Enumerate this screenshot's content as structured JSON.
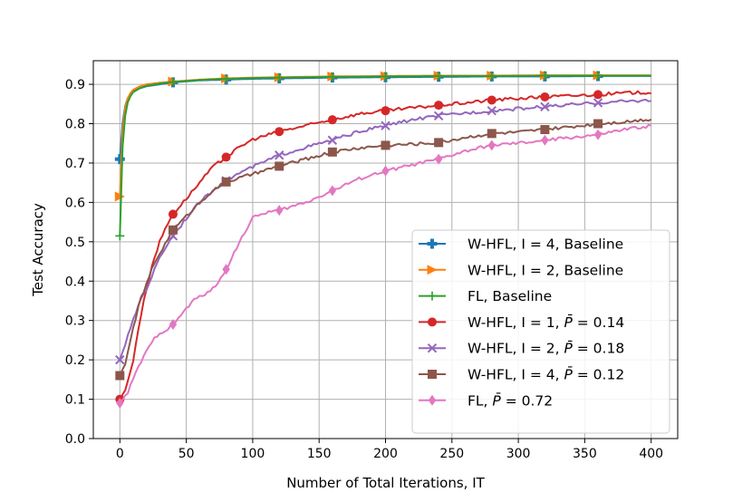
{
  "chart_data": {
    "type": "line",
    "xlabel": "Number of Total Iterations, IT",
    "ylabel": "Test Accuracy",
    "xlim": [
      -20,
      420
    ],
    "ylim": [
      0.0,
      0.96
    ],
    "xticks": [
      0,
      50,
      100,
      150,
      200,
      250,
      300,
      350,
      400
    ],
    "xtick_labels": [
      "0",
      "50",
      "100",
      "150",
      "200",
      "250",
      "300",
      "350",
      "400"
    ],
    "yticks": [
      0.0,
      0.1,
      0.2,
      0.3,
      0.4,
      0.5,
      0.6,
      0.7,
      0.8,
      0.9
    ],
    "ytick_labels": [
      "0.0",
      "0.1",
      "0.2",
      "0.3",
      "0.4",
      "0.5",
      "0.6",
      "0.7",
      "0.8",
      "0.9"
    ],
    "grid": true,
    "legend_position": "bottom-right",
    "series": [
      {
        "name": "W-HFL, I = 4, Baseline",
        "color": "#1f77b4",
        "marker": "plus-filled",
        "x": [
          0,
          2,
          4,
          6,
          8,
          10,
          15,
          20,
          30,
          40,
          60,
          80,
          100,
          120,
          160,
          200,
          240,
          280,
          320,
          360,
          400
        ],
        "y": [
          0.71,
          0.8,
          0.845,
          0.865,
          0.875,
          0.882,
          0.89,
          0.895,
          0.9,
          0.905,
          0.91,
          0.912,
          0.914,
          0.915,
          0.917,
          0.918,
          0.919,
          0.92,
          0.92,
          0.921,
          0.921
        ]
      },
      {
        "name": "W-HFL, I = 2, Baseline",
        "color": "#ff7f0e",
        "marker": "triangle-right",
        "x": [
          0,
          2,
          4,
          6,
          8,
          10,
          15,
          20,
          30,
          40,
          60,
          80,
          100,
          120,
          160,
          200,
          240,
          280,
          320,
          360,
          400
        ],
        "y": [
          0.615,
          0.78,
          0.84,
          0.865,
          0.878,
          0.886,
          0.895,
          0.9,
          0.904,
          0.907,
          0.912,
          0.915,
          0.917,
          0.918,
          0.92,
          0.921,
          0.922,
          0.922,
          0.923,
          0.923,
          0.923
        ]
      },
      {
        "name": "FL, Baseline",
        "color": "#2ca02c",
        "marker": "plus",
        "x": [
          0,
          2,
          4,
          6,
          8,
          10,
          15,
          20,
          30,
          40,
          60,
          80,
          100,
          120,
          160,
          200,
          240,
          280,
          320,
          360,
          400
        ],
        "y": [
          0.515,
          0.74,
          0.82,
          0.855,
          0.87,
          0.88,
          0.89,
          0.896,
          0.902,
          0.906,
          0.911,
          0.914,
          0.916,
          0.917,
          0.919,
          0.92,
          0.921,
          0.921,
          0.922,
          0.922,
          0.922
        ]
      },
      {
        "name": "W-HFL, I = 1, P̄ = 0.14",
        "color": "#d62728",
        "marker": "circle",
        "x": [
          0,
          5,
          10,
          15,
          20,
          25,
          30,
          35,
          40,
          50,
          60,
          70,
          80,
          90,
          100,
          110,
          120,
          140,
          160,
          180,
          200,
          220,
          240,
          260,
          280,
          300,
          320,
          340,
          360,
          380,
          400
        ],
        "y": [
          0.1,
          0.13,
          0.2,
          0.3,
          0.38,
          0.45,
          0.5,
          0.54,
          0.57,
          0.61,
          0.65,
          0.69,
          0.715,
          0.74,
          0.76,
          0.77,
          0.78,
          0.795,
          0.81,
          0.825,
          0.833,
          0.84,
          0.847,
          0.853,
          0.86,
          0.864,
          0.868,
          0.871,
          0.874,
          0.878,
          0.88
        ]
      },
      {
        "name": "W-HFL, I = 2, P̄ = 0.18",
        "color": "#9467bd",
        "marker": "x",
        "x": [
          0,
          5,
          10,
          15,
          20,
          25,
          30,
          35,
          40,
          50,
          60,
          70,
          80,
          90,
          100,
          110,
          120,
          140,
          160,
          180,
          200,
          220,
          240,
          260,
          280,
          300,
          320,
          340,
          360,
          380,
          400
        ],
        "y": [
          0.2,
          0.25,
          0.3,
          0.35,
          0.38,
          0.42,
          0.46,
          0.49,
          0.515,
          0.56,
          0.6,
          0.63,
          0.655,
          0.675,
          0.69,
          0.705,
          0.72,
          0.74,
          0.758,
          0.78,
          0.795,
          0.81,
          0.82,
          0.827,
          0.833,
          0.838,
          0.843,
          0.848,
          0.853,
          0.857,
          0.86
        ]
      },
      {
        "name": "W-HFL, I = 4, P̄ = 0.12",
        "color": "#8c564b",
        "marker": "square",
        "x": [
          0,
          5,
          10,
          15,
          20,
          25,
          30,
          35,
          40,
          50,
          60,
          70,
          80,
          90,
          100,
          110,
          120,
          140,
          160,
          180,
          200,
          220,
          240,
          260,
          280,
          300,
          320,
          340,
          360,
          380,
          400
        ],
        "y": [
          0.16,
          0.2,
          0.28,
          0.35,
          0.39,
          0.44,
          0.47,
          0.5,
          0.53,
          0.565,
          0.6,
          0.63,
          0.652,
          0.662,
          0.672,
          0.682,
          0.692,
          0.71,
          0.728,
          0.738,
          0.745,
          0.748,
          0.752,
          0.765,
          0.775,
          0.778,
          0.785,
          0.792,
          0.8,
          0.805,
          0.812
        ]
      },
      {
        "name": "FL, P̄ = 0.72",
        "color": "#e377c2",
        "marker": "diamond",
        "x": [
          0,
          5,
          10,
          15,
          20,
          25,
          30,
          35,
          40,
          45,
          50,
          55,
          60,
          65,
          70,
          75,
          80,
          90,
          100,
          110,
          120,
          130,
          140,
          150,
          160,
          180,
          200,
          220,
          240,
          260,
          280,
          300,
          320,
          340,
          360,
          380,
          400
        ],
        "y": [
          0.09,
          0.11,
          0.15,
          0.19,
          0.22,
          0.25,
          0.27,
          0.275,
          0.29,
          0.31,
          0.33,
          0.35,
          0.36,
          0.37,
          0.38,
          0.4,
          0.43,
          0.5,
          0.56,
          0.575,
          0.58,
          0.59,
          0.6,
          0.615,
          0.63,
          0.66,
          0.68,
          0.695,
          0.71,
          0.73,
          0.745,
          0.75,
          0.758,
          0.765,
          0.772,
          0.785,
          0.795
        ]
      }
    ],
    "marker_x": {
      "baseline": [
        0,
        40,
        80,
        120,
        160,
        200,
        240,
        280,
        320,
        360
      ],
      "others": [
        0,
        40,
        80,
        120,
        160,
        200,
        240,
        280,
        320,
        360
      ]
    },
    "legend_lines": [
      {
        "prefix": "W-HFL, I = 4, Baseline",
        "math": ""
      },
      {
        "prefix": "W-HFL, I = 2, Baseline",
        "math": ""
      },
      {
        "prefix": "FL, Baseline",
        "math": ""
      },
      {
        "prefix": "W-HFL, I = 1, ",
        "math": "0.14"
      },
      {
        "prefix": "W-HFL, I = 2, ",
        "math": "0.18"
      },
      {
        "prefix": "W-HFL, I = 4, ",
        "math": "0.12"
      },
      {
        "prefix": "FL, ",
        "math": "0.72"
      }
    ]
  }
}
